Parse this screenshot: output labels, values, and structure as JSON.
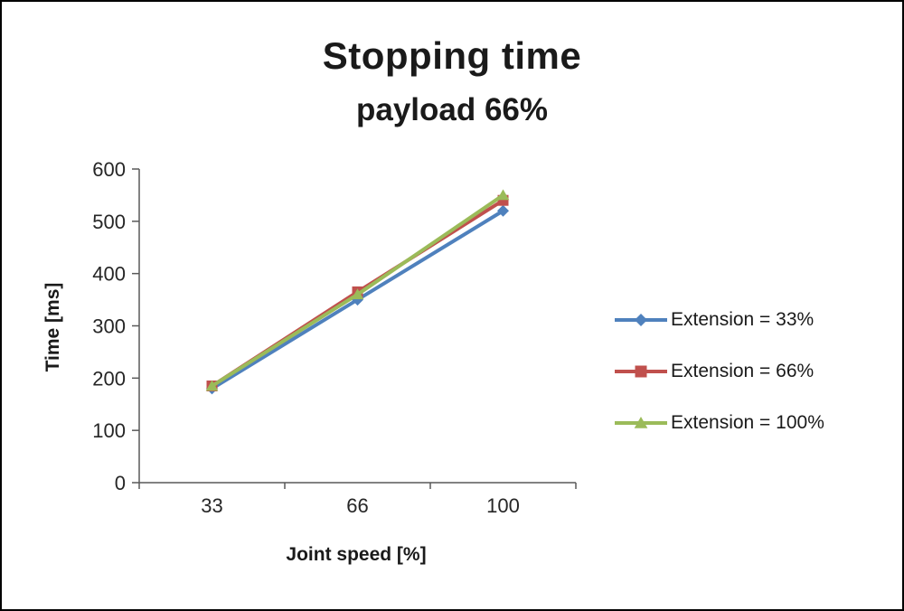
{
  "chart": {
    "title": "Stopping time",
    "subtitle": "payload 66%"
  },
  "chart_data": {
    "type": "line",
    "categories": [
      "33",
      "66",
      "100"
    ],
    "series": [
      {
        "name": "Extension = 33%",
        "values": [
          180,
          350,
          520
        ],
        "color": "#4f81bd",
        "marker": "diamond"
      },
      {
        "name": "Extension = 66%",
        "values": [
          185,
          365,
          540
        ],
        "color": "#c0504d",
        "marker": "square"
      },
      {
        "name": "Extension = 100%",
        "values": [
          185,
          360,
          550
        ],
        "color": "#9bbb59",
        "marker": "triangle"
      }
    ],
    "xlabel": "Joint speed [%]",
    "ylabel": "Time [ms]",
    "ylim": [
      0,
      600
    ],
    "ytick_step": 100,
    "legend_position": "right",
    "grid": false,
    "axis_color": "#595959"
  }
}
